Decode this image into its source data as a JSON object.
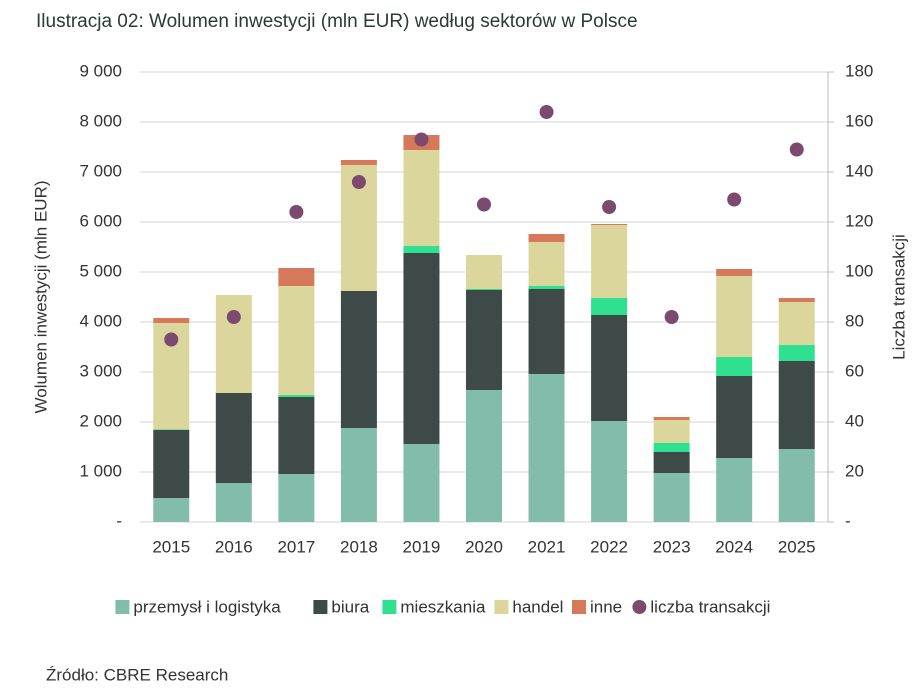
{
  "chart_data": {
    "type": "bar",
    "stacked": true,
    "title": "Ilustracja 02: Wolumen inwestycji (mln EUR) według sektorów w Polsce",
    "ylabel": "Wolumen inwestycji (mln EUR)",
    "y2label": "Liczba transakcji",
    "source": "Źródło: CBRE Research",
    "categories": [
      "2015",
      "2016",
      "2017",
      "2018",
      "2019",
      "2020",
      "2021",
      "2022",
      "2023",
      "2024",
      "2025"
    ],
    "series": [
      {
        "name": "przemysł i logistyka",
        "color": "#82bcaa",
        "values": [
          480,
          780,
          960,
          1880,
          1560,
          2640,
          2960,
          2020,
          980,
          1280,
          1460
        ]
      },
      {
        "name": "biura",
        "color": "#3d4a47",
        "values": [
          1360,
          1800,
          1540,
          2740,
          3820,
          2000,
          1700,
          2120,
          420,
          1640,
          1760
        ]
      },
      {
        "name": "mieszkania",
        "color": "#2ee08f",
        "values": [
          10,
          0,
          40,
          0,
          140,
          20,
          60,
          340,
          180,
          380,
          320
        ]
      },
      {
        "name": "handel",
        "color": "#dad69c",
        "values": [
          2130,
          1960,
          2180,
          2520,
          1920,
          680,
          880,
          1460,
          460,
          1620,
          860
        ]
      },
      {
        "name": "inne",
        "color": "#d5795a",
        "values": [
          100,
          0,
          360,
          100,
          300,
          0,
          160,
          20,
          60,
          140,
          80
        ]
      },
      {
        "name": "liczba transakcji",
        "color": "#7b4a6e",
        "type": "scatter",
        "axis": "y2",
        "values": [
          73,
          82,
          124,
          136,
          153,
          127,
          164,
          126,
          82,
          129,
          149
        ]
      }
    ],
    "ylim": [
      0,
      9000
    ],
    "yticks": [
      {
        "value": 0,
        "label": "-"
      },
      {
        "value": 1000,
        "label": "1 000"
      },
      {
        "value": 2000,
        "label": "2 000"
      },
      {
        "value": 3000,
        "label": "3 000"
      },
      {
        "value": 4000,
        "label": "4 000"
      },
      {
        "value": 5000,
        "label": "5 000"
      },
      {
        "value": 6000,
        "label": "6 000"
      },
      {
        "value": 7000,
        "label": "7 000"
      },
      {
        "value": 8000,
        "label": "8 000"
      },
      {
        "value": 9000,
        "label": "9 000"
      }
    ],
    "y2lim": [
      0,
      180
    ],
    "y2ticks": [
      {
        "value": 0,
        "label": "-"
      },
      20,
      40,
      60,
      80,
      100,
      120,
      140,
      160,
      180
    ],
    "grid": true
  }
}
